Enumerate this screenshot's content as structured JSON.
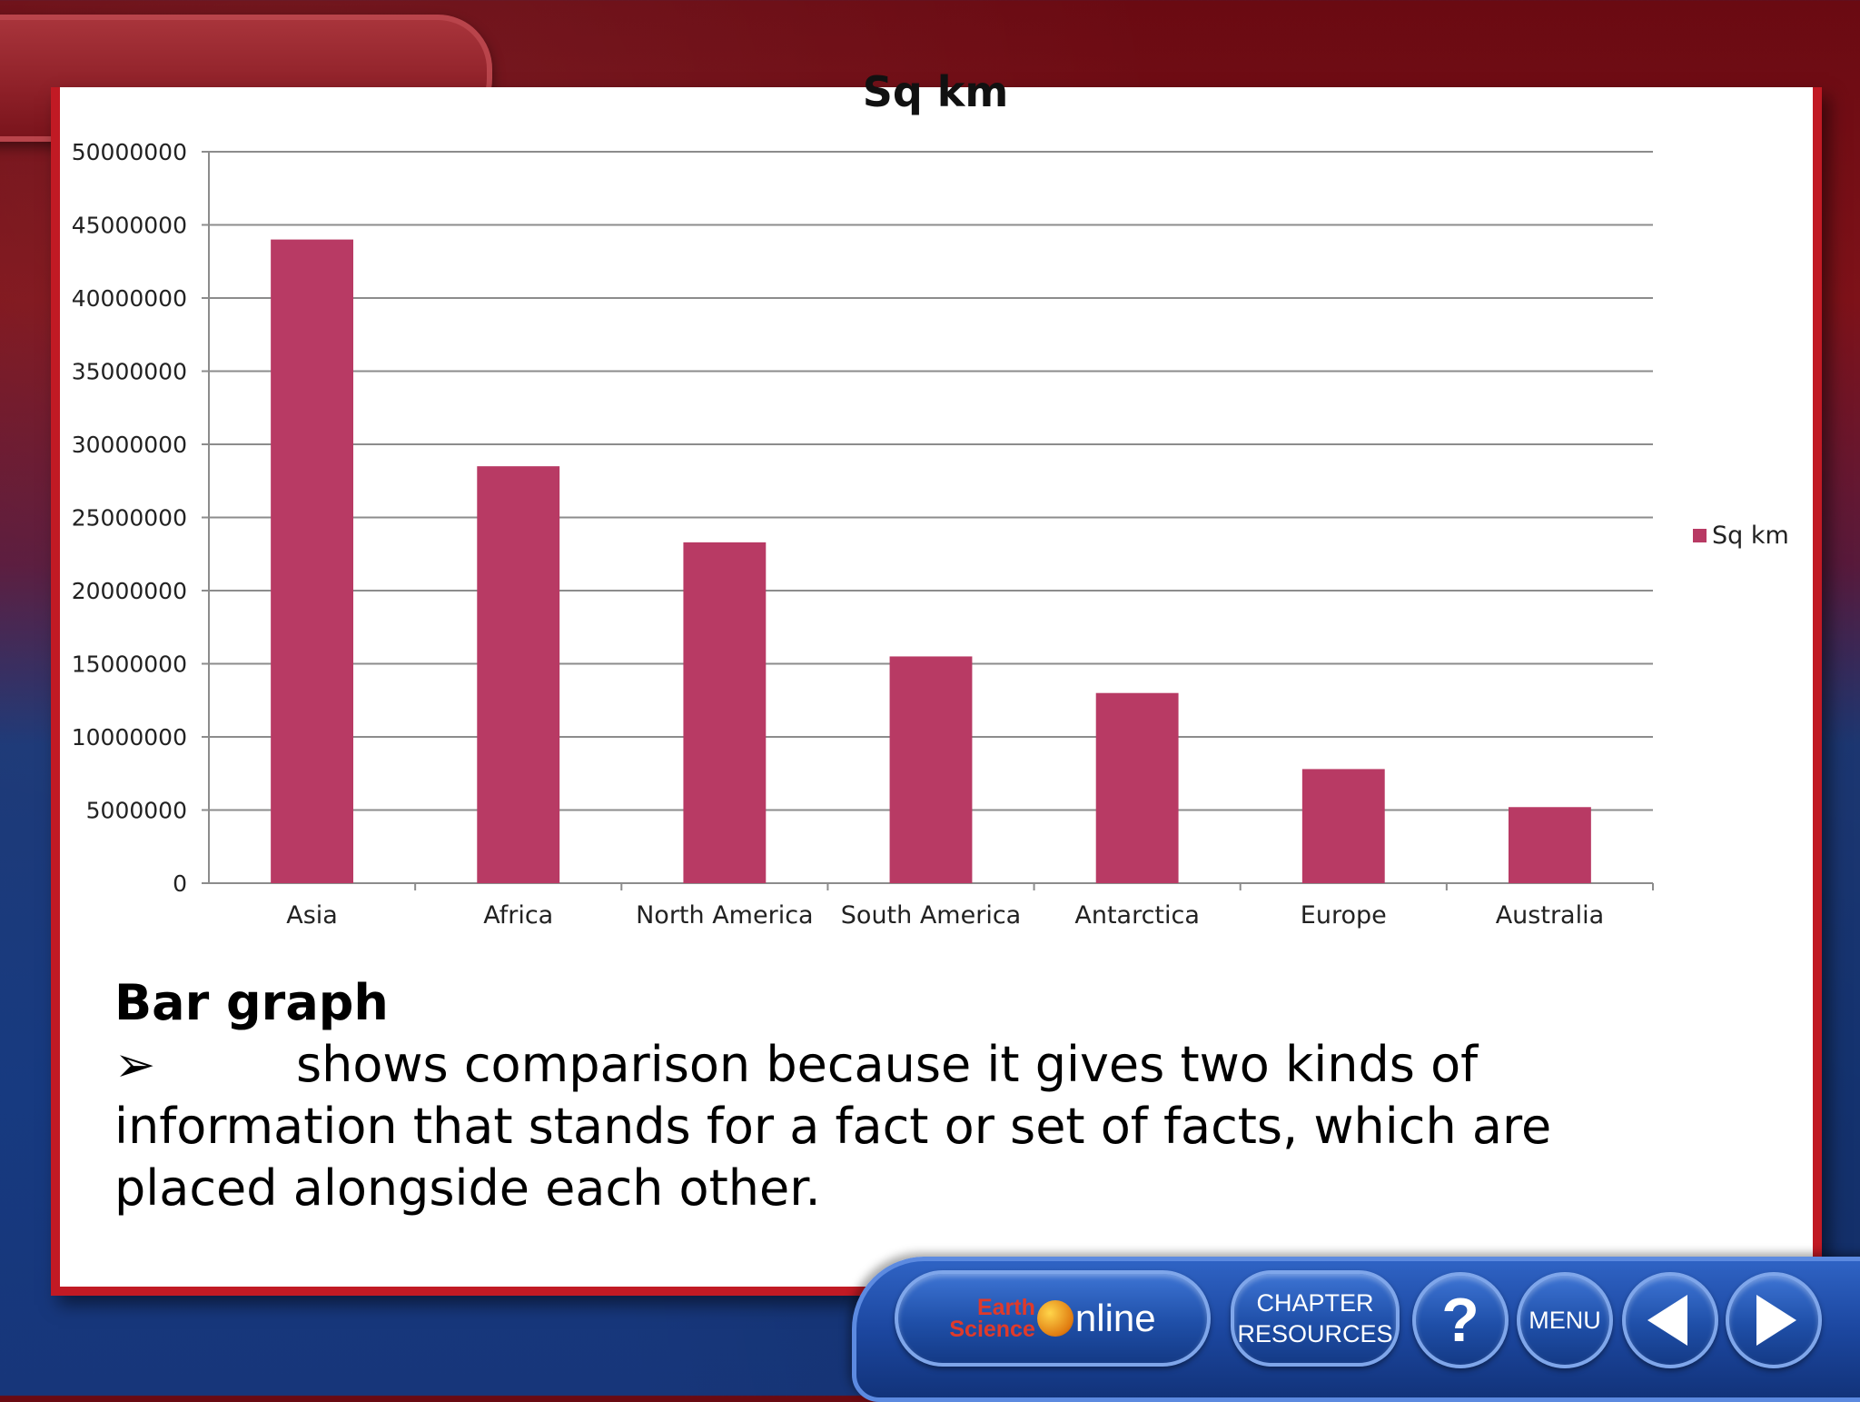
{
  "slide": {
    "caption_heading": "Bar graph",
    "caption_bullet": "➢",
    "caption_line1": "shows comparison because it gives two kinds of",
    "caption_line2": "information that stands for a fact or set of facts, which are",
    "caption_line3": "placed alongside each other."
  },
  "chart_data": {
    "type": "bar",
    "title": "Sq km",
    "categories": [
      "Asia",
      "Africa",
      "North America",
      "South America",
      "Antarctica",
      "Europe",
      "Australia"
    ],
    "series": [
      {
        "name": "Sq km",
        "values": [
          44000000,
          28500000,
          23300000,
          15500000,
          13000000,
          7800000,
          5200000
        ],
        "color": "#b83a64"
      }
    ],
    "y_ticks": [
      "0",
      "5000000",
      "10000000",
      "15000000",
      "20000000",
      "25000000",
      "30000000",
      "35000000",
      "40000000",
      "45000000",
      "50000000"
    ],
    "ylim": [
      0,
      50000000
    ],
    "grid": true,
    "legend_position": "right"
  },
  "navbar": {
    "logo_earth": "Earth",
    "logo_science": "Science",
    "logo_online": "nline",
    "chapter_line1": "CHAPTER",
    "chapter_line2": "RESOURCES",
    "help_label": "?",
    "menu_label": "MENU"
  }
}
